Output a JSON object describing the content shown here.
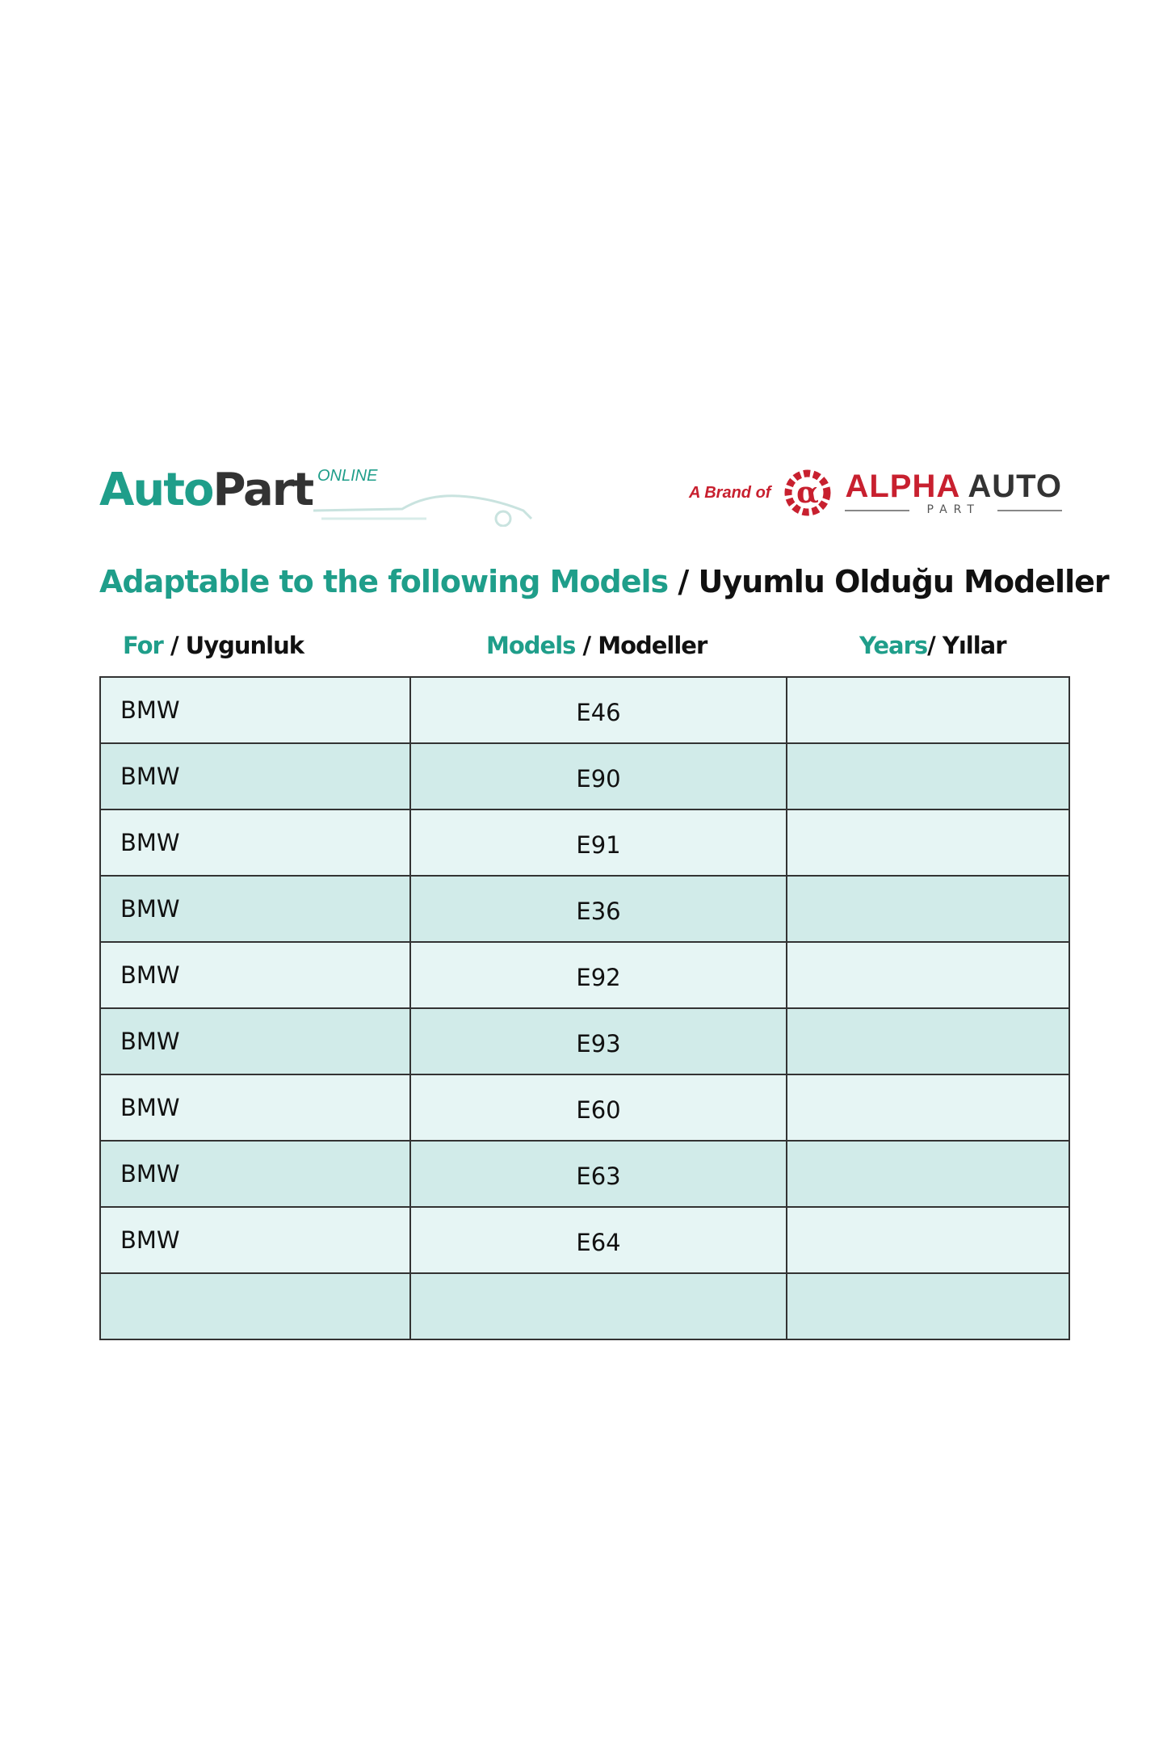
{
  "logo_left": {
    "main": "Auto",
    "part": "Part",
    "sub": "ONLINE"
  },
  "brand": {
    "prefix": "A Brand of",
    "name_red": "ALPHA",
    "name_dark": "AUTO",
    "sub": "PART"
  },
  "title": {
    "en": "Adaptable to the following Models",
    "tr": " / Uyumlu Olduğu Modeller"
  },
  "headers": [
    {
      "en": "For",
      "tr": " / Uygunluk"
    },
    {
      "en": "Models",
      "tr": " / Modeller"
    },
    {
      "en": "Years",
      "tr": "/ Yıllar"
    }
  ],
  "rows": [
    {
      "make": "BMW",
      "model": "E46",
      "years": ""
    },
    {
      "make": "BMW",
      "model": "E90",
      "years": ""
    },
    {
      "make": "BMW",
      "model": "E91",
      "years": ""
    },
    {
      "make": "BMW",
      "model": "E36",
      "years": ""
    },
    {
      "make": "BMW",
      "model": "E92",
      "years": ""
    },
    {
      "make": "BMW",
      "model": "E93",
      "years": ""
    },
    {
      "make": "BMW",
      "model": "E60",
      "years": ""
    },
    {
      "make": "BMW",
      "model": "E63",
      "years": ""
    },
    {
      "make": "BMW",
      "model": "E64",
      "years": ""
    },
    {
      "make": "",
      "model": "",
      "years": ""
    }
  ],
  "colors": {
    "teal": "#1f9e8a",
    "red": "#c8202f",
    "row_light": "#e6f5f4",
    "row_dark": "#d1ebe9"
  }
}
